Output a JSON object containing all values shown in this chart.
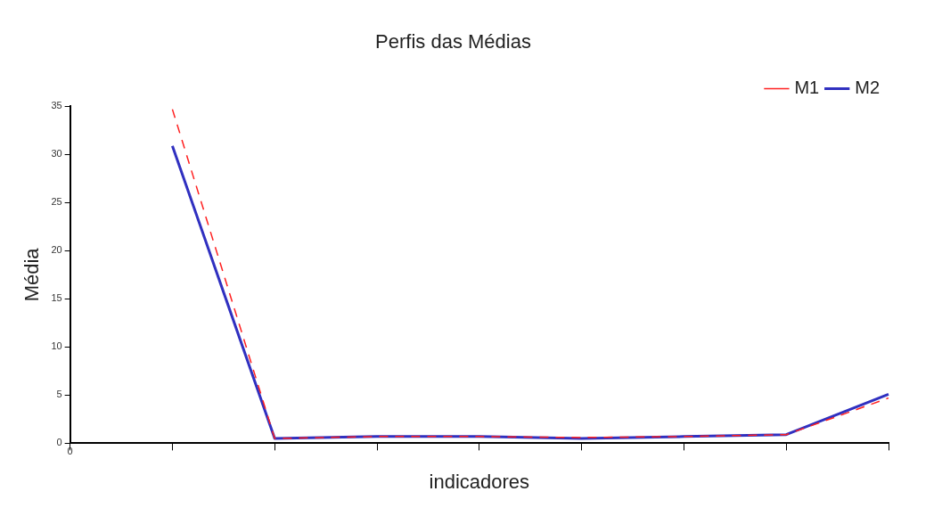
{
  "chart_data": {
    "type": "line",
    "title": "Perfis das Médias",
    "xlabel": "indicadores",
    "ylabel": "Média",
    "categories": [
      null,
      null,
      null,
      null,
      null,
      null,
      null,
      null
    ],
    "annotations": [
      "0"
    ],
    "series": [
      {
        "name": "M1",
        "color": "#ff2020",
        "line_style": "dashed",
        "values": [
          34.7,
          0.5,
          0.7,
          0.7,
          0.6,
          0.7,
          0.9,
          4.7
        ]
      },
      {
        "name": "M2",
        "color": "#3030c0",
        "line_style": "solid",
        "values": [
          30.9,
          0.5,
          0.7,
          0.7,
          0.5,
          0.7,
          0.9,
          5.1
        ]
      }
    ],
    "ylim": [
      0,
      35
    ],
    "yticks": [
      0,
      5,
      10,
      15,
      20,
      25,
      30,
      35
    ],
    "grid": false,
    "legend": "top right",
    "marker": "none"
  }
}
